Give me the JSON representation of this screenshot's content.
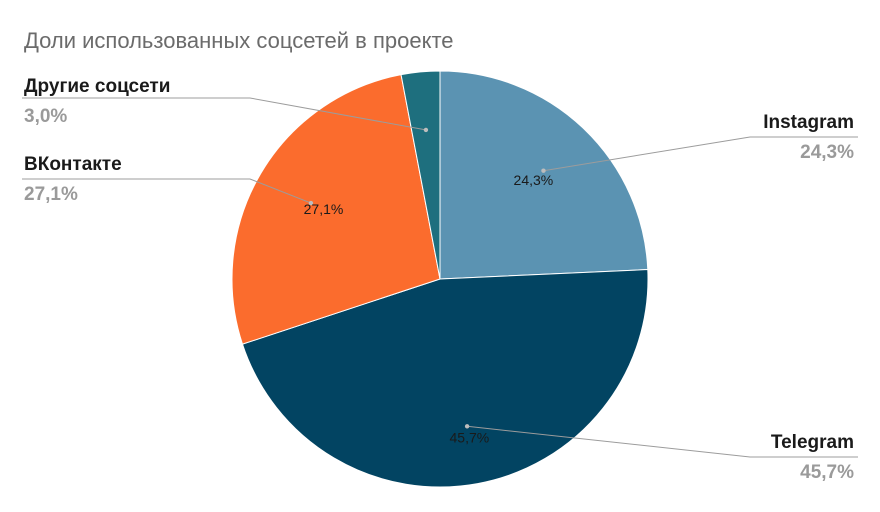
{
  "chart_data": {
    "type": "pie",
    "title": "Доли использованных соцсетей в проекте",
    "slices": [
      {
        "name": "Instagram",
        "value": 24.3,
        "label": "24,3%",
        "color": "#5b93b2"
      },
      {
        "name": "Telegram",
        "value": 45.7,
        "label": "45,7%",
        "color": "#024462"
      },
      {
        "name": "ВКонтакте",
        "value": 27.1,
        "label": "27,1%",
        "color": "#fb6c2d"
      },
      {
        "name": "Другие соцсети",
        "value": 3.0,
        "label": "3,0%",
        "color": "#1e6f7e"
      }
    ],
    "legend": "outside-labels-with-leader-lines"
  }
}
